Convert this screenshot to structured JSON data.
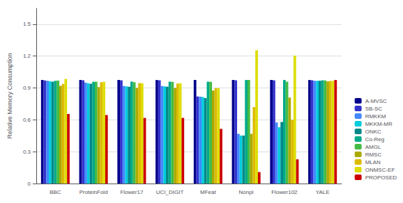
{
  "chart_data": {
    "type": "bar",
    "categories": [
      "BBC",
      "ProteinFold",
      "Flower17",
      "UCI_DIGIT",
      "MFeat",
      "NonpI",
      "Flower102",
      "YALE"
    ],
    "series": [
      {
        "name": "A-MVSC",
        "color": "#00008B",
        "values": [
          0.975,
          0.975,
          0.975,
          0.975,
          0.975,
          0.975,
          0.975,
          0.975
        ]
      },
      {
        "name": "SB-SC",
        "color": "#3333CC",
        "values": [
          0.97,
          0.972,
          0.972,
          0.972,
          0.82,
          0.972,
          0.972,
          0.972
        ]
      },
      {
        "name": "RMKKM",
        "color": "#4488FF",
        "values": [
          0.968,
          0.95,
          0.918,
          0.918,
          0.818,
          0.468,
          0.575,
          0.968
        ]
      },
      {
        "name": "MKKM-MR",
        "color": "#00CCDD",
        "values": [
          0.963,
          0.945,
          0.915,
          0.915,
          0.815,
          0.452,
          0.53,
          0.968
        ]
      },
      {
        "name": "ONKC",
        "color": "#008888",
        "values": [
          0.96,
          0.94,
          0.912,
          0.912,
          0.805,
          0.452,
          0.58,
          0.968
        ]
      },
      {
        "name": "Co-Reg",
        "color": "#00AA88",
        "values": [
          0.968,
          0.958,
          0.96,
          0.96,
          0.96,
          0.975,
          0.975,
          0.972
        ]
      },
      {
        "name": "AMGL",
        "color": "#44BB44",
        "values": [
          0.97,
          0.96,
          0.955,
          0.958,
          0.958,
          0.975,
          0.96,
          0.97
        ]
      },
      {
        "name": "RMSC",
        "color": "#AAAA00",
        "values": [
          0.92,
          0.908,
          0.9,
          0.9,
          0.875,
          0.468,
          0.81,
          0.962
        ]
      },
      {
        "name": "MLAN",
        "color": "#DDBB00",
        "values": [
          0.938,
          0.955,
          0.945,
          0.942,
          0.898,
          0.72,
          0.6,
          0.965
        ]
      },
      {
        "name": "ONMSC-EF",
        "color": "#DDDD00",
        "values": [
          0.985,
          0.958,
          0.945,
          0.945,
          0.898,
          1.255,
          1.205,
          0.968
        ]
      },
      {
        "name": "PROPOSED",
        "color": "#CC0000",
        "values": [
          0.655,
          0.645,
          0.618,
          0.618,
          0.515,
          0.108,
          0.228,
          0.975
        ]
      }
    ],
    "ylabel": "Relative Memory Consumption",
    "ylim": [
      0,
      1.65
    ],
    "yticks": [
      0,
      0.3,
      0.6,
      0.9,
      1.2,
      1.5
    ],
    "grid": true,
    "legend": "lower right"
  }
}
